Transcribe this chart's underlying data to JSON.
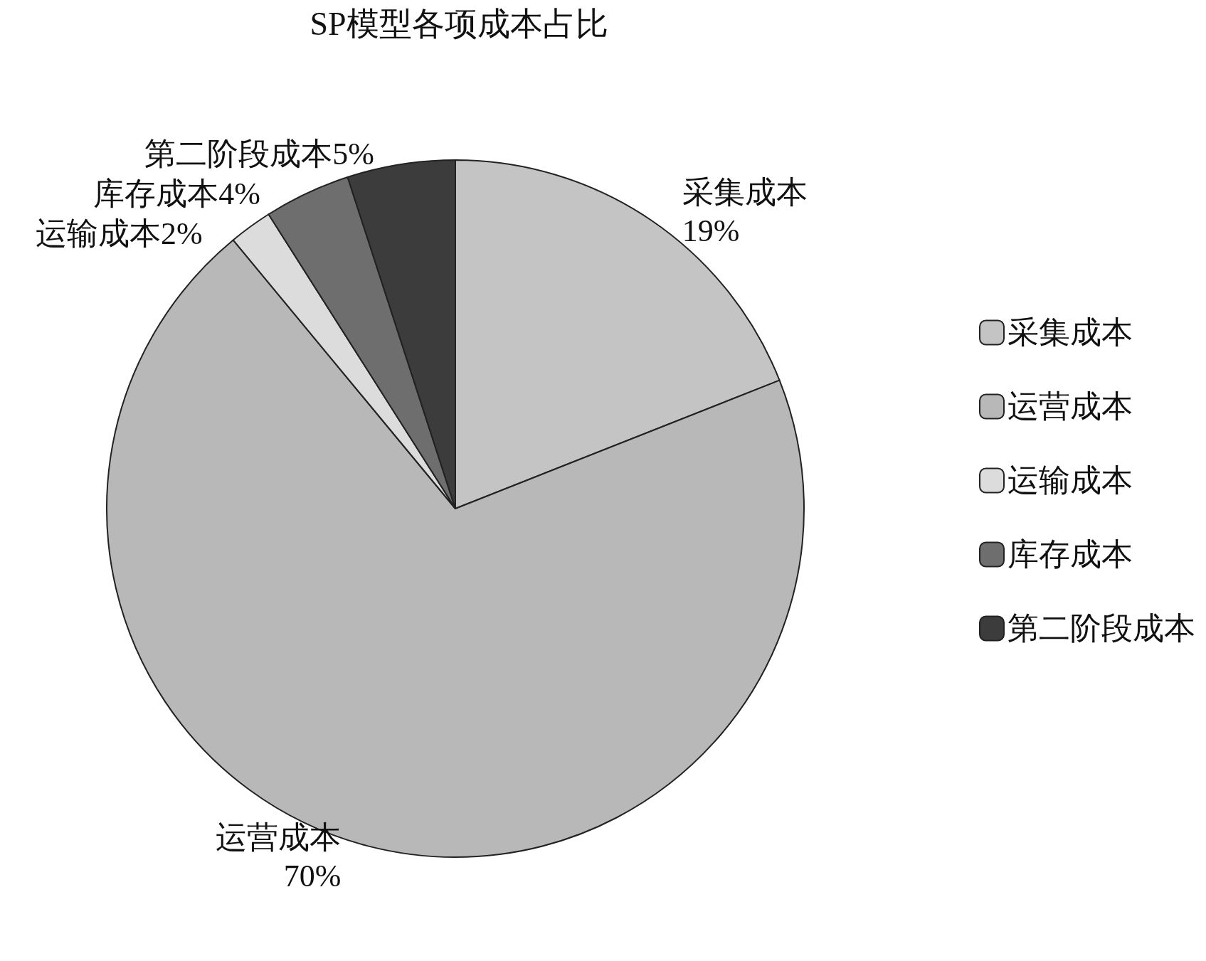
{
  "chart_data": {
    "type": "pie",
    "title": "SP模型各项成本占比",
    "categories": [
      "采集成本",
      "运营成本",
      "运输成本",
      "库存成本",
      "第二阶段成本"
    ],
    "values": [
      19,
      70,
      2,
      4,
      5
    ],
    "value_labels": [
      "19%",
      "70%",
      "2%",
      "4%",
      "5%"
    ],
    "colors": [
      "#c4c4c4",
      "#b8b8b8",
      "#dcdcdc",
      "#6e6e6e",
      "#3c3c3c"
    ],
    "legend": "right"
  }
}
